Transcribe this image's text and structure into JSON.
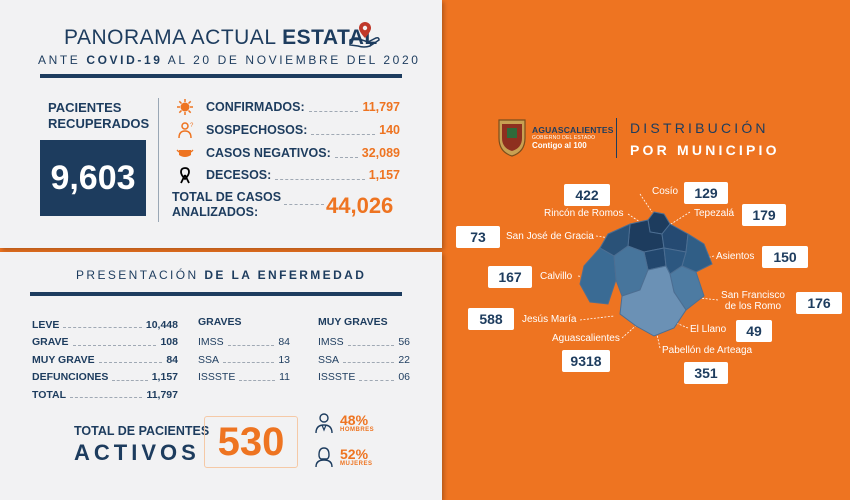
{
  "header": {
    "title_light": "PANORAMA ACTUAL ",
    "title_bold": "ESTATAL",
    "subtitle_pre": "ANTE ",
    "subtitle_bold": "COVID-19",
    "subtitle_post": " AL 20 DE NOVIEMBRE DEL 2020"
  },
  "recovered": {
    "label_l1": "PACIENTES",
    "label_l2": "RECUPERADOS",
    "value": "9,603"
  },
  "stats": [
    {
      "label": "CONFIRMADOS:",
      "value": "11,797",
      "icon": "virus-icon"
    },
    {
      "label": "SOSPECHOSOS:",
      "value": "140",
      "icon": "suspect-icon"
    },
    {
      "label": "CASOS NEGATIVOS:",
      "value": "32,089",
      "icon": "mask-icon"
    },
    {
      "label": "DECESOS:",
      "value": "1,157",
      "icon": "ribbon-icon"
    }
  ],
  "total_cases": {
    "label_l1": "TOTAL DE CASOS",
    "label_l2": "ANALIZADOS:",
    "value": "44,026"
  },
  "presentation": {
    "title_light": "PRESENTACIÓN ",
    "title_bold": "DE LA ENFERMEDAD",
    "severity": [
      {
        "label": "LEVE",
        "value": "10,448"
      },
      {
        "label": "GRAVE",
        "value": "108"
      },
      {
        "label": "MUY GRAVE",
        "value": "84"
      },
      {
        "label": "DEFUNCIONES",
        "value": "1,157"
      },
      {
        "label": "TOTAL",
        "value": "11,797"
      }
    ],
    "graves": {
      "heading": "GRAVES",
      "rows": [
        {
          "label": "IMSS",
          "value": "84"
        },
        {
          "label": "SSA",
          "value": "13"
        },
        {
          "label": "ISSSTE",
          "value": "11"
        }
      ]
    },
    "muy_graves": {
      "heading": "MUY GRAVES",
      "rows": [
        {
          "label": "IMSS",
          "value": "56"
        },
        {
          "label": "SSA",
          "value": "22"
        },
        {
          "label": "ISSSTE",
          "value": "06"
        }
      ]
    }
  },
  "active": {
    "label_l1": "TOTAL DE PACIENTES",
    "label_l2": "ACTIVOS",
    "value": "530",
    "men_pct": "48%",
    "men_label": "HOMBRES",
    "women_pct": "52%",
    "women_label": "MUJERES"
  },
  "logo": {
    "line1": "AGUASCALIENTES",
    "line2": "GOBIERNO DEL ESTADO",
    "line3": "Contigo al 100"
  },
  "distribution": {
    "line1": "DISTRIBUCIÓN",
    "line2": "POR MUNICIPIO"
  },
  "municipalities": [
    {
      "name": "Cosío",
      "value": "129"
    },
    {
      "name": "Rincón de Romos",
      "value": "422"
    },
    {
      "name": "Tepezalá",
      "value": "179"
    },
    {
      "name": "San José de Gracia",
      "value": "73"
    },
    {
      "name": "Asientos",
      "value": "150"
    },
    {
      "name": "Calvillo",
      "value": "167"
    },
    {
      "name": "San Francisco de los Romo",
      "value": "176"
    },
    {
      "name": "Jesús María",
      "value": "588"
    },
    {
      "name": "El Llano",
      "value": "49"
    },
    {
      "name": "Aguascalientes",
      "value": "9318"
    },
    {
      "name": "Pabellón de Arteaga",
      "value": "351"
    }
  ],
  "colors": {
    "navy": "#1d3c5e",
    "orange": "#ee7421",
    "panel": "#f2f2f3"
  }
}
